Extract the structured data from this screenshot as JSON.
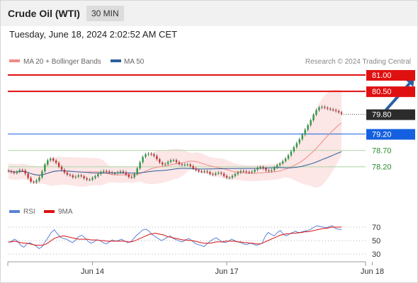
{
  "instrument": "Crude Oil (WTI)",
  "timeframe": "30 MIN",
  "datetime": "Tuesday, June 18, 2024 2:02:52 AM CET",
  "copyright": "Research © 2024 Trading Central",
  "legend": {
    "ma20": {
      "label": "MA 20 + Bollinger Bands",
      "color": "#f08a86"
    },
    "ma50": {
      "label": "MA 50",
      "color": "#2c5f9e"
    }
  },
  "rsi_legend": {
    "rsi": {
      "label": "RSI",
      "color": "#5b82d6"
    },
    "ma9": {
      "label": "9MA",
      "color": "#dd1111"
    }
  },
  "chart_data": {
    "type": "candlestick",
    "price_scale": {
      "min": 77.3,
      "max": 81.3
    },
    "x_ticks": [
      {
        "label": "Jun 14",
        "index": 30
      },
      {
        "label": "Jun 17",
        "index": 78
      },
      {
        "label": "Jun 18",
        "index": 130
      }
    ],
    "levels": [
      {
        "value": 81.0,
        "label": "81.00",
        "kind": "resistance",
        "color": "#e01010"
      },
      {
        "value": 80.5,
        "label": "80.50",
        "kind": "resistance",
        "color": "#e01010"
      },
      {
        "value": 79.8,
        "label": "79.80",
        "kind": "last",
        "color": "#2b2b2b"
      },
      {
        "value": 79.2,
        "label": "79.20",
        "kind": "pivot",
        "color": "#1560e0"
      },
      {
        "value": 78.7,
        "label": "78.70",
        "kind": "support",
        "color": "#2a8a2a"
      },
      {
        "value": 78.2,
        "label": "78.20",
        "kind": "support",
        "color": "#2a8a2a"
      }
    ],
    "forecast_arrow": {
      "from": {
        "index": 134,
        "price": 79.85
      },
      "to": {
        "index": 145,
        "price": 80.9
      }
    },
    "closes": [
      78.07,
      78.04,
      78.01,
      78.05,
      78.1,
      78.09,
      77.99,
      77.86,
      77.74,
      77.73,
      77.78,
      77.88,
      78.06,
      78.27,
      78.4,
      78.45,
      78.39,
      78.32,
      78.2,
      78.11,
      78.02,
      77.96,
      77.94,
      77.88,
      77.9,
      77.94,
      77.91,
      77.85,
      77.81,
      77.81,
      77.86,
      77.91,
      77.98,
      78.04,
      78.07,
      78.06,
      78.03,
      78.0,
      78.0,
      78.03,
      78.06,
      78.03,
      77.96,
      77.89,
      77.88,
      77.98,
      78.15,
      78.34,
      78.5,
      78.58,
      78.6,
      78.58,
      78.53,
      78.43,
      78.33,
      78.27,
      78.29,
      78.35,
      78.4,
      78.4,
      78.34,
      78.28,
      78.26,
      78.27,
      78.27,
      78.22,
      78.15,
      78.1,
      78.06,
      78.05,
      78.06,
      78.04,
      77.98,
      77.96,
      78.0,
      78.02,
      77.99,
      77.92,
      77.87,
      77.87,
      77.92,
      77.98,
      78.03,
      78.07,
      78.06,
      78.04,
      78.03,
      78.05,
      78.11,
      78.17,
      78.19,
      78.15,
      78.09,
      78.07,
      78.1,
      78.18,
      78.25,
      78.3,
      78.37,
      78.45,
      78.55,
      78.67,
      78.8,
      78.92,
      79.04,
      79.18,
      79.33,
      79.47,
      79.62,
      79.79,
      79.93,
      80.01,
      80.03,
      80.0,
      79.97,
      79.95,
      79.93,
      79.9,
      79.86,
      79.82
    ],
    "rsi": {
      "levels": [
        70,
        50,
        30
      ],
      "values": [
        47,
        49,
        52,
        49,
        43,
        40,
        45,
        47,
        44,
        42,
        38,
        41,
        48,
        55,
        62,
        66,
        60,
        55,
        53,
        52,
        49,
        47,
        51,
        56,
        58,
        54,
        49,
        46,
        48,
        51,
        50,
        47,
        45,
        48,
        51,
        49,
        50,
        52,
        49,
        47,
        48,
        53,
        58,
        62,
        66,
        67,
        64,
        59,
        56,
        53,
        50,
        52,
        55,
        57,
        53,
        51,
        49,
        48,
        51,
        53,
        50,
        46,
        44,
        43,
        41,
        45,
        49,
        52,
        54,
        51,
        48,
        47,
        49,
        52,
        50,
        48,
        47,
        45,
        44,
        46,
        45,
        43,
        44,
        46,
        56,
        62,
        59,
        57,
        62,
        65,
        59,
        57,
        60,
        62,
        64,
        61,
        63,
        64,
        65,
        67,
        70,
        72,
        71,
        70,
        69,
        71,
        72,
        68,
        67,
        66
      ],
      "ma9": [
        48,
        48,
        49,
        48,
        47,
        46,
        46,
        45,
        44,
        43,
        43,
        43,
        44,
        47,
        50,
        53,
        55,
        56,
        57,
        56,
        55,
        54,
        53,
        52,
        52,
        52,
        52,
        51,
        51,
        51,
        50,
        50,
        49,
        49,
        49,
        49,
        49,
        49,
        49,
        48,
        48,
        49,
        51,
        53,
        55,
        57,
        59,
        60,
        61,
        60,
        59,
        58,
        56,
        55,
        54,
        53,
        52,
        51,
        51,
        50,
        50,
        49,
        48,
        47,
        46,
        46,
        46,
        47,
        48,
        48,
        48,
        49,
        49,
        49,
        49,
        48,
        48,
        47,
        47,
        46,
        46,
        45,
        45,
        46,
        48,
        50,
        52,
        54,
        56,
        58,
        59,
        60,
        60,
        61,
        61,
        62,
        62,
        63,
        63,
        64,
        65,
        66,
        67,
        68,
        68,
        69,
        70,
        70,
        70,
        70
      ]
    }
  }
}
